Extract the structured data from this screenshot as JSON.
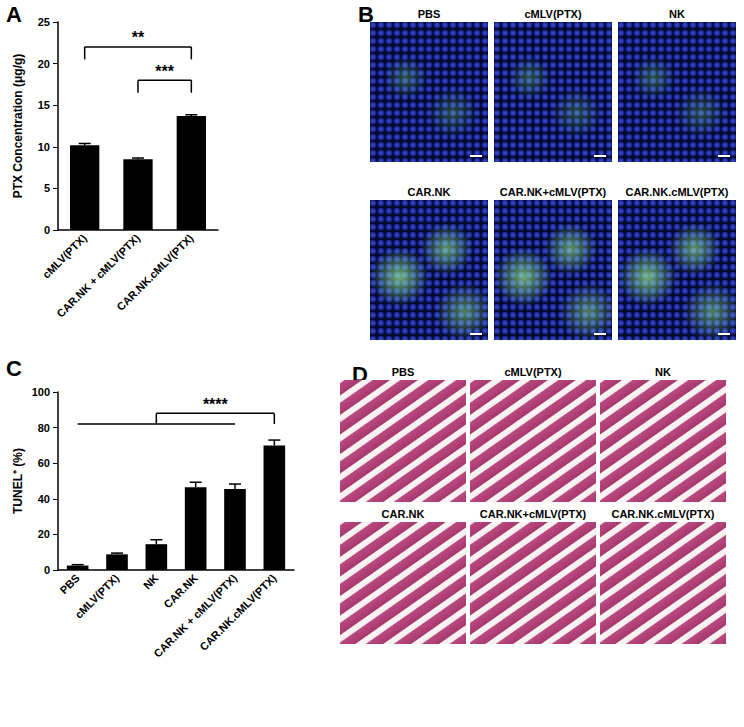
{
  "chart_data": [
    {
      "panel_label": "A",
      "type": "bar",
      "ylabel": "PTX Concentration (μg/g)",
      "categories": [
        "cMLV(PTX)",
        "CAR.NK + cMLV(PTX)",
        "CAR.NK.cMLV(PTX)"
      ],
      "values": [
        10.2,
        8.5,
        13.7
      ],
      "errors": [
        0.2,
        0.15,
        0.15
      ],
      "color": "#000000",
      "ylim": [
        0,
        25
      ],
      "yticks": [
        0,
        5,
        10,
        15,
        20,
        25
      ],
      "grid": false,
      "significance": [
        {
          "left": [
            0,
            0
          ],
          "right": [
            2,
            2
          ],
          "label": "**"
        },
        {
          "left": [
            1,
            1
          ],
          "right": [
            2,
            2
          ],
          "label": "***"
        }
      ]
    },
    {
      "panel_label": "C",
      "type": "bar",
      "ylabel": "TUNEL⁺ (%)",
      "categories": [
        "PBS",
        "cMLV(PTX)",
        "NK",
        "CAR.NK",
        "CAR.NK + cMLV(PTX)",
        "CAR.NK.cMLV(PTX)"
      ],
      "values": [
        2.5,
        8.8,
        14.5,
        46.5,
        45.5,
        70
      ],
      "errors": [
        0.5,
        0.7,
        2.5,
        2.8,
        2.8,
        3
      ],
      "color": "#000000",
      "ylim": [
        0,
        100
      ],
      "yticks": [
        0,
        20,
        40,
        60,
        80,
        100
      ],
      "grid": false,
      "significance": [
        {
          "left": [
            0,
            4
          ],
          "right": [
            5,
            5
          ],
          "label": "****"
        }
      ]
    }
  ],
  "image_panels": [
    {
      "panel_label": "B",
      "tiles": [
        "PBS",
        "cMLV(PTX)",
        "NK",
        "CAR.NK",
        "CAR.NK+cMLV(PTX)",
        "CAR.NK.cMLV(PTX)"
      ]
    },
    {
      "panel_label": "D",
      "tiles": [
        "PBS",
        "cMLV(PTX)",
        "NK",
        "CAR.NK",
        "CAR.NK+cMLV(PTX)",
        "CAR.NK.cMLV(PTX)"
      ]
    }
  ]
}
